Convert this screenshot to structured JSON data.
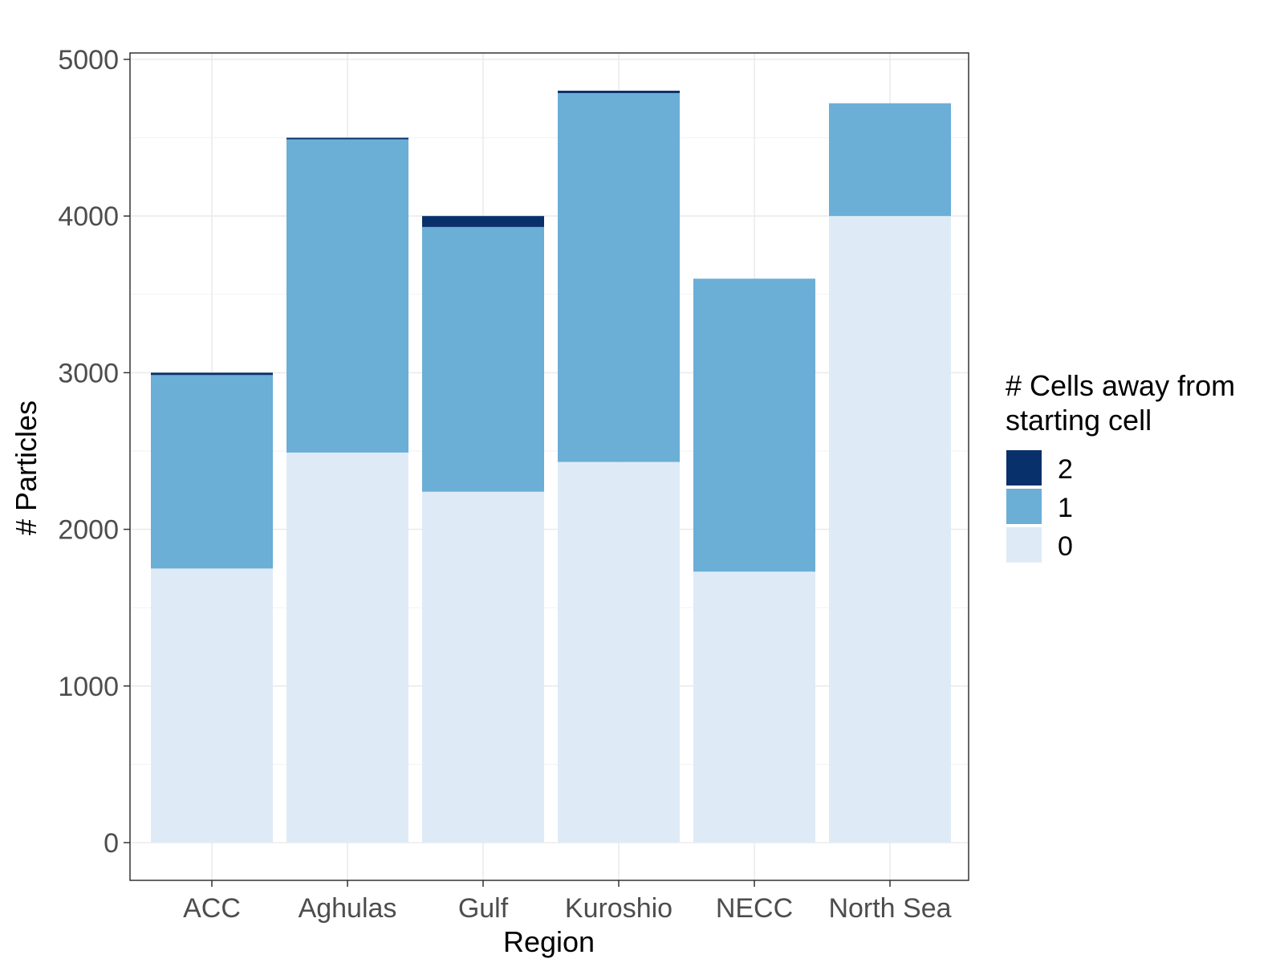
{
  "chart_data": {
    "type": "bar",
    "stacked": true,
    "categories": [
      "ACC",
      "Aghulas",
      "Gulf",
      "Kuroshio",
      "NECC",
      "North Sea"
    ],
    "series": [
      {
        "name": "0",
        "color": "#deebf7",
        "values": [
          1750,
          2490,
          2240,
          2430,
          1730,
          4000
        ]
      },
      {
        "name": "1",
        "color": "#6baed6",
        "values": [
          1235,
          2000,
          1690,
          2355,
          1870,
          720
        ]
      },
      {
        "name": "2",
        "color": "#08306b",
        "values": [
          15,
          10,
          70,
          15,
          0,
          0
        ]
      }
    ],
    "xlabel": "Region",
    "ylabel": "# Particles",
    "ylim": [
      0,
      5000
    ],
    "yticks": [
      "0",
      "1000",
      "2000",
      "3000",
      "4000",
      "5000"
    ],
    "grid": true,
    "legend": {
      "title_lines": [
        "# Cells away from",
        "starting cell"
      ],
      "placement": "right",
      "order": [
        "2",
        "1",
        "0"
      ]
    }
  }
}
